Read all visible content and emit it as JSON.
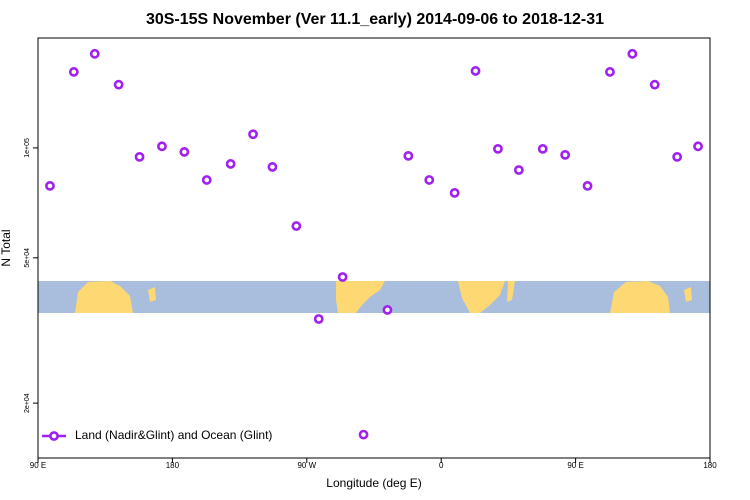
{
  "chart_data": {
    "type": "scatter",
    "title": "30S-15S November (Ver 11.1_early)   2014-09-06 to 2018-12-31",
    "x_label": "Longitude (deg E)",
    "y_label": "N Total",
    "log_y": true,
    "legend_position": "bottomleft",
    "xlim": [
      90,
      540
    ],
    "ylim": [
      14150,
      200000
    ],
    "xticks": [
      {
        "value": 90,
        "label": "90 E"
      },
      180,
      {
        "value": 270,
        "label": "90 W"
      },
      {
        "value": 360,
        "label": "0"
      },
      {
        "value": 450,
        "label": "90 E"
      },
      {
        "value": 540,
        "label": "180"
      }
    ],
    "yticks": [
      {
        "value": 20000,
        "label": "2e+04"
      },
      {
        "value": 50000,
        "label": "5e+04"
      },
      {
        "value": 100000,
        "label": "1e+05"
      }
    ],
    "series": [
      {
        "name": "Land (Nadir&Glint) and Ocean (Glint)",
        "color": "#a020f0",
        "x": [
          98,
          114,
          128,
          144,
          158,
          173,
          188,
          203,
          219,
          234,
          247,
          263,
          278,
          294,
          308,
          324,
          338,
          352,
          369,
          383,
          398,
          412,
          428,
          443,
          458,
          473,
          488,
          503,
          518,
          532
        ],
        "values": [
          78700,
          161500,
          181000,
          149000,
          94500,
          101000,
          97500,
          81700,
          90400,
          109000,
          88700,
          61100,
          34000,
          44300,
          16400,
          36000,
          95100,
          81700,
          75300,
          162500,
          99400,
          87000,
          99400,
          95700,
          78700,
          161500,
          181000,
          149000,
          94500,
          101000
        ]
      }
    ]
  }
}
